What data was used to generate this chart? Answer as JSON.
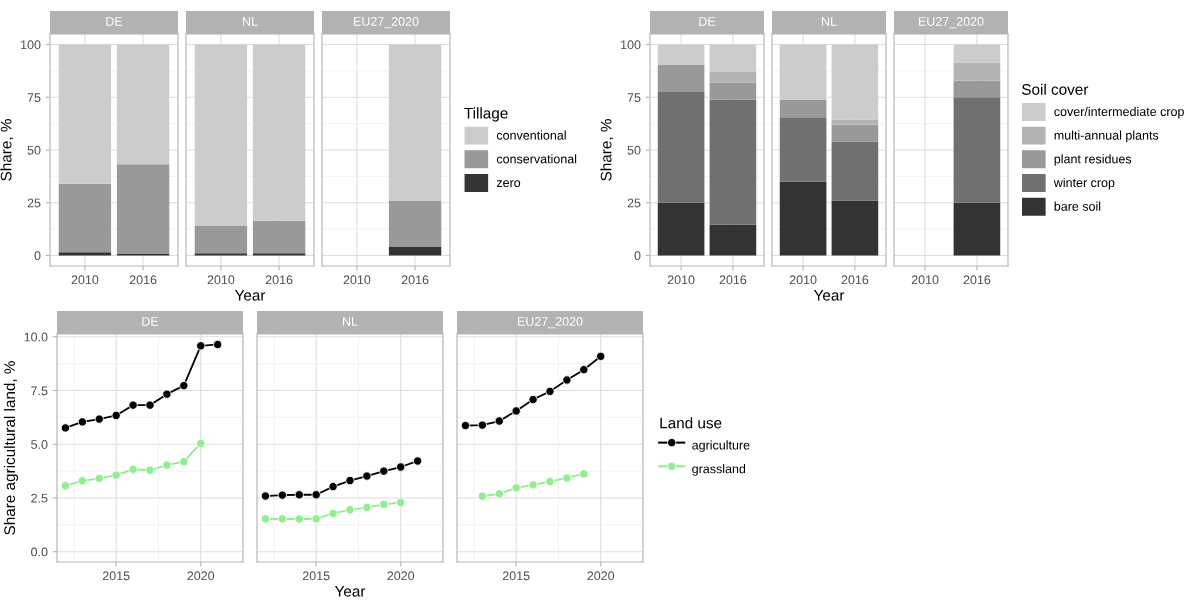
{
  "chart_data": [
    {
      "type": "bar",
      "stacked": true,
      "title": "DE",
      "ylabel": "Share, %",
      "categories": [
        "2010",
        "2016"
      ],
      "ylim": [
        -5,
        105
      ],
      "yticks": [
        0,
        25,
        50,
        75,
        100
      ],
      "grid": true,
      "series": [
        {
          "color": "#333333",
          "values": [
            1.5,
            0.7
          ]
        },
        {
          "color": "#999999",
          "values": [
            32.5,
            42.5
          ]
        },
        {
          "color": "#cccccc",
          "values": [
            66,
            56.8
          ]
        }
      ]
    },
    {
      "type": "bar",
      "stacked": true,
      "title": "NL",
      "xlabel": "Year",
      "categories": [
        "2010",
        "2016"
      ],
      "ylim": [
        -5,
        105
      ],
      "yticks": [
        0,
        25,
        50,
        75,
        100
      ],
      "grid": true,
      "tick_labels": "x",
      "series": [
        {
          "color": "#333333",
          "values": [
            1,
            1
          ]
        },
        {
          "color": "#999999",
          "values": [
            13,
            15.5
          ]
        },
        {
          "color": "#cccccc",
          "values": [
            86,
            83.5
          ]
        }
      ]
    },
    {
      "type": "bar",
      "stacked": true,
      "title": "EU27_2020",
      "legend_title": "Tillage",
      "categories": [
        "2010",
        "2016"
      ],
      "ylim": [
        -5,
        105
      ],
      "yticks": [
        0,
        25,
        50,
        75,
        100
      ],
      "grid": true,
      "legend": "right",
      "tick_labels": "x",
      "series": [
        {
          "name": "zero",
          "color": "#333333",
          "values": [
            null,
            4
          ]
        },
        {
          "name": "conservational",
          "color": "#999999",
          "values": [
            null,
            22
          ]
        },
        {
          "name": "conventional",
          "color": "#cccccc",
          "values": [
            null,
            74
          ]
        }
      ]
    },
    {
      "type": "bar",
      "stacked": true,
      "title": "DE",
      "ylabel": "Share, %",
      "categories": [
        "2010",
        "2016"
      ],
      "ylim": [
        -5,
        105
      ],
      "yticks": [
        0,
        25,
        50,
        75,
        100
      ],
      "grid": true,
      "series": [
        {
          "color": "#333333",
          "values": [
            25,
            14.5
          ]
        },
        {
          "color": "#707070",
          "values": [
            52.5,
            59.5
          ]
        },
        {
          "color": "#999999",
          "values": [
            13,
            8
          ]
        },
        {
          "color": "#b3b3b3",
          "values": [
            0,
            5
          ]
        },
        {
          "color": "#cccccc",
          "values": [
            9.5,
            13
          ]
        }
      ]
    },
    {
      "type": "bar",
      "stacked": true,
      "title": "NL",
      "xlabel": "Year",
      "categories": [
        "2010",
        "2016"
      ],
      "ylim": [
        -5,
        105
      ],
      "yticks": [
        0,
        25,
        50,
        75,
        100
      ],
      "grid": true,
      "tick_labels": "x",
      "series": [
        {
          "color": "#333333",
          "values": [
            35,
            26
          ]
        },
        {
          "color": "#707070",
          "values": [
            30.5,
            28
          ]
        },
        {
          "color": "#999999",
          "values": [
            8.5,
            8
          ]
        },
        {
          "color": "#b3b3b3",
          "values": [
            0,
            2.5
          ]
        },
        {
          "color": "#cccccc",
          "values": [
            26,
            35.5
          ]
        }
      ]
    },
    {
      "type": "bar",
      "stacked": true,
      "title": "EU27_2020",
      "legend_title": "Soil cover",
      "categories": [
        "2010",
        "2016"
      ],
      "ylim": [
        -5,
        105
      ],
      "yticks": [
        0,
        25,
        50,
        75,
        100
      ],
      "grid": true,
      "legend": "right",
      "tick_labels": "x",
      "series": [
        {
          "name": "bare soil",
          "color": "#333333",
          "values": [
            null,
            25
          ]
        },
        {
          "name": "winter crop",
          "color": "#707070",
          "values": [
            null,
            50
          ]
        },
        {
          "name": "plant residues",
          "color": "#999999",
          "values": [
            null,
            8
          ]
        },
        {
          "name": "multi-annual plants",
          "color": "#b3b3b3",
          "values": [
            null,
            8.5
          ]
        },
        {
          "name": "cover/intermediate crop",
          "color": "#cccccc",
          "values": [
            null,
            8.5
          ]
        }
      ]
    },
    {
      "type": "line",
      "title": "DE",
      "ylabel": "Share agricultural land, %",
      "x": [
        2012,
        2013,
        2014,
        2015,
        2016,
        2017,
        2018,
        2019,
        2020,
        2021
      ],
      "xlim": [
        2011.5,
        2022.5
      ],
      "xticks": [
        2015,
        2020
      ],
      "ylim": [
        -0.48,
        10.13
      ],
      "yticks": [
        {
          "value": 0,
          "label": "0.0"
        },
        2.5,
        {
          "value": 5,
          "label": "5.0"
        },
        7.5,
        {
          "value": 10,
          "label": "10.0"
        }
      ],
      "grid": true,
      "marker": "circle",
      "line_style": "solid",
      "series": [
        {
          "color": "#000000",
          "values": [
            5.76,
            6.04,
            6.17,
            6.34,
            6.82,
            6.82,
            7.33,
            7.73,
            9.58,
            9.64
          ]
        },
        {
          "color": "#90ee90",
          "values": [
            3.07,
            3.3,
            3.41,
            3.56,
            3.83,
            3.79,
            4.03,
            4.19,
            5.04,
            null
          ]
        }
      ]
    },
    {
      "type": "line",
      "title": "NL",
      "xlabel": "Year",
      "x": [
        2012,
        2013,
        2014,
        2015,
        2016,
        2017,
        2018,
        2019,
        2020,
        2021
      ],
      "xlim": [
        2011.5,
        2022.5
      ],
      "xticks": [
        2015,
        2020
      ],
      "ylim": [
        -0.48,
        10.13
      ],
      "yticks": [
        0,
        2.5,
        5,
        7.5,
        10
      ],
      "grid": true,
      "marker": "circle",
      "line_style": "solid",
      "tick_labels": "x",
      "series": [
        {
          "color": "#000000",
          "values": [
            2.59,
            2.63,
            2.65,
            2.65,
            3.03,
            3.31,
            3.52,
            3.75,
            3.94,
            4.22
          ]
        },
        {
          "color": "#90ee90",
          "values": [
            1.53,
            1.52,
            1.52,
            1.53,
            1.78,
            1.95,
            2.06,
            2.2,
            2.29,
            null
          ]
        }
      ]
    },
    {
      "type": "line",
      "title": "EU27_2020",
      "legend_title": "Land use",
      "x": [
        2012,
        2013,
        2014,
        2015,
        2016,
        2017,
        2018,
        2019,
        2020
      ],
      "xlim": [
        2011.5,
        2022.5
      ],
      "xticks": [
        2015,
        2020
      ],
      "ylim": [
        -0.48,
        10.13
      ],
      "yticks": [
        0,
        2.5,
        5,
        7.5,
        10
      ],
      "grid": true,
      "marker": "circle",
      "line_style": "solid",
      "legend": "right",
      "tick_labels": "x",
      "series": [
        {
          "name": "agriculture",
          "color": "#000000",
          "values": [
            5.87,
            5.89,
            6.08,
            6.55,
            7.08,
            7.46,
            7.99,
            8.47,
            9.09
          ]
        },
        {
          "name": "grassland",
          "color": "#90ee90",
          "values": [
            null,
            2.58,
            2.69,
            2.97,
            3.11,
            3.26,
            3.43,
            3.62,
            null
          ]
        }
      ]
    }
  ]
}
